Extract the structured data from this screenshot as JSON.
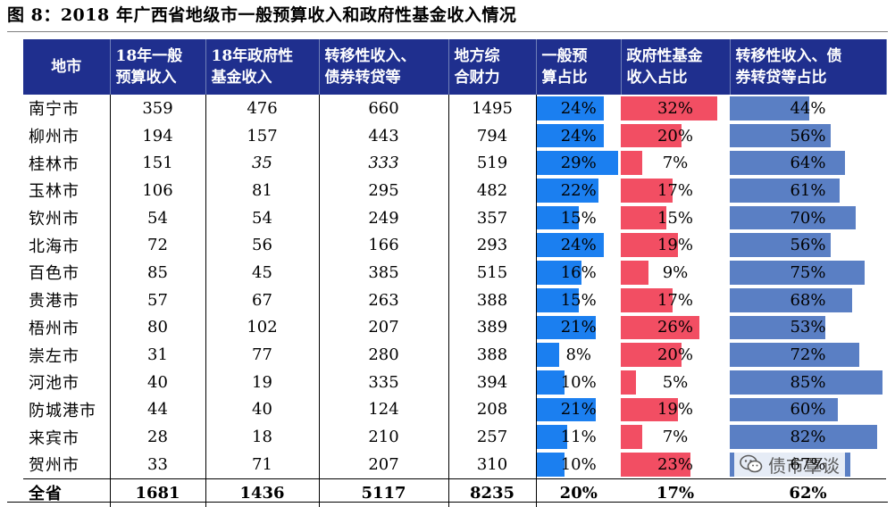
{
  "caption": "图 8：2018 年广西省地级市一般预算收入和政府性基金收入情况",
  "headers": {
    "city": "地市",
    "gen_budget": [
      "18年一般",
      "预算收入"
    ],
    "gov_fund": [
      "18年政府性",
      "基金收入"
    ],
    "transfer": [
      "转移性收入、",
      "债券转贷等"
    ],
    "total": [
      "地方综",
      "合财力"
    ],
    "gen_ratio": [
      "一般预",
      "算占比"
    ],
    "fund_ratio": [
      "政府性基金",
      "收入占比"
    ],
    "transfer_ratio": [
      "转移性收入、债",
      "券转贷等占比"
    ]
  },
  "rows": [
    {
      "city": "南宁市",
      "gen": "359",
      "fund": "476",
      "transfer": "660",
      "total": "1495",
      "r1": "24%",
      "r2": "32%",
      "r3": "44%",
      "v1": 24,
      "v2": 32,
      "v3": 44
    },
    {
      "city": "柳州市",
      "gen": "194",
      "fund": "157",
      "transfer": "443",
      "total": "794",
      "r1": "24%",
      "r2": "20%",
      "r3": "56%",
      "v1": 24,
      "v2": 20,
      "v3": 56
    },
    {
      "city": "桂林市",
      "gen": "151",
      "fund": "35",
      "transfer": "333",
      "total": "519",
      "r1": "29%",
      "r2": "7%",
      "r3": "64%",
      "v1": 29,
      "v2": 7,
      "v3": 64,
      "italic": true
    },
    {
      "city": "玉林市",
      "gen": "106",
      "fund": "81",
      "transfer": "295",
      "total": "482",
      "r1": "22%",
      "r2": "17%",
      "r3": "61%",
      "v1": 22,
      "v2": 17,
      "v3": 61
    },
    {
      "city": "钦州市",
      "gen": "54",
      "fund": "54",
      "transfer": "249",
      "total": "357",
      "r1": "15%",
      "r2": "15%",
      "r3": "70%",
      "v1": 15,
      "v2": 15,
      "v3": 70
    },
    {
      "city": "北海市",
      "gen": "72",
      "fund": "56",
      "transfer": "166",
      "total": "293",
      "r1": "24%",
      "r2": "19%",
      "r3": "56%",
      "v1": 24,
      "v2": 19,
      "v3": 56
    },
    {
      "city": "百色市",
      "gen": "85",
      "fund": "45",
      "transfer": "385",
      "total": "515",
      "r1": "16%",
      "r2": "9%",
      "r3": "75%",
      "v1": 16,
      "v2": 9,
      "v3": 75
    },
    {
      "city": "贵港市",
      "gen": "57",
      "fund": "67",
      "transfer": "263",
      "total": "388",
      "r1": "15%",
      "r2": "17%",
      "r3": "68%",
      "v1": 15,
      "v2": 17,
      "v3": 68
    },
    {
      "city": "梧州市",
      "gen": "80",
      "fund": "102",
      "transfer": "207",
      "total": "389",
      "r1": "21%",
      "r2": "26%",
      "r3": "53%",
      "v1": 21,
      "v2": 26,
      "v3": 53
    },
    {
      "city": "崇左市",
      "gen": "31",
      "fund": "77",
      "transfer": "280",
      "total": "388",
      "r1": "8%",
      "r2": "20%",
      "r3": "72%",
      "v1": 8,
      "v2": 20,
      "v3": 72
    },
    {
      "city": "河池市",
      "gen": "40",
      "fund": "19",
      "transfer": "335",
      "total": "394",
      "r1": "10%",
      "r2": "5%",
      "r3": "85%",
      "v1": 10,
      "v2": 5,
      "v3": 85
    },
    {
      "city": "防城港市",
      "gen": "44",
      "fund": "40",
      "transfer": "124",
      "total": "208",
      "r1": "21%",
      "r2": "19%",
      "r3": "60%",
      "v1": 21,
      "v2": 19,
      "v3": 60
    },
    {
      "city": "来宾市",
      "gen": "28",
      "fund": "18",
      "transfer": "210",
      "total": "257",
      "r1": "11%",
      "r2": "7%",
      "r3": "82%",
      "v1": 11,
      "v2": 7,
      "v3": 82
    },
    {
      "city": "贺州市",
      "gen": "33",
      "fund": "71",
      "transfer": "207",
      "total": "310",
      "r1": "10%",
      "r2": "23%",
      "r3": "67%",
      "v1": 10,
      "v2": 23,
      "v3": 67
    }
  ],
  "total_row": {
    "city": "全省",
    "gen": "1681",
    "fund": "1436",
    "transfer": "5117",
    "total": "8235",
    "r1": "20%",
    "r2": "17%",
    "r3": "62%"
  },
  "watermark": "债市覃谈",
  "colors": {
    "header_bg": "#1f2f8e",
    "bar1": "#1b7ff0",
    "bar2": "#f24e63",
    "bar3": "#5a7fc4"
  },
  "bar_scale_max": {
    "r1": 30,
    "r2": 36,
    "r3": 87
  }
}
